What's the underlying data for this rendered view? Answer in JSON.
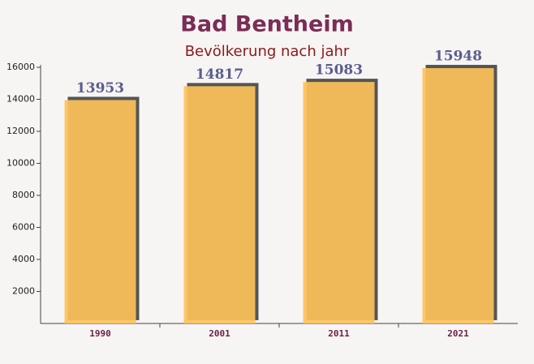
{
  "chart_data": {
    "type": "bar",
    "title": "Bad Bentheim",
    "subtitle": "Bevölkerung nach jahr",
    "categories": [
      "1990",
      "2001",
      "2011",
      "2021"
    ],
    "values": [
      13953,
      14817,
      15083,
      15948
    ],
    "color": "#fdc25a",
    "ylim": [
      0,
      16000
    ],
    "yticks": [
      2000,
      4000,
      6000,
      8000,
      10000,
      12000,
      14000,
      16000
    ],
    "grid": false
  }
}
